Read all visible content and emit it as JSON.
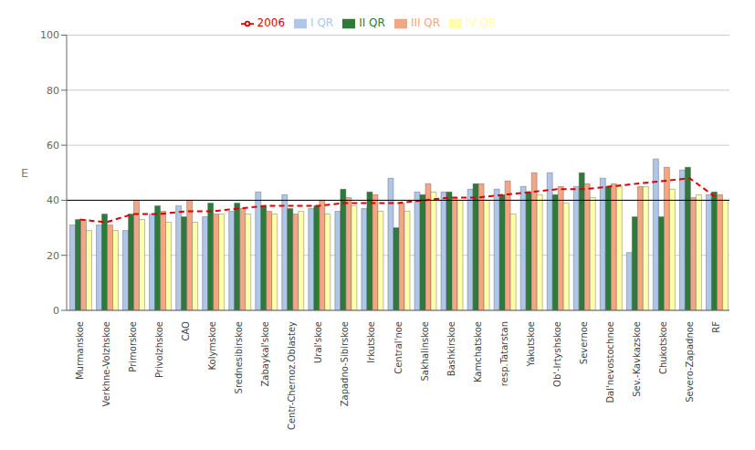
{
  "chart_data": {
    "type": "bar",
    "ylabel": "E",
    "categories": [
      "Murmanskoe",
      "Verkhne-Volzhskoe",
      "Primorskoe",
      "Privolzhskoe",
      "CAO",
      "Kolymskoe",
      "Srednesibirskoe",
      "Zabaykal'skoe",
      "Centr-Chernoz.Oblastey",
      "Ural'skoe",
      "Zapadno-Sibirskoe",
      "Irkutskoe",
      "Central'noe",
      "Sakhalinskoe",
      "Bashkirskoe",
      "Kamchatskoe",
      "resp.Tatarstan",
      "Yakutskoe",
      "Ob'-Irtyshskoe",
      "Severnoe",
      "Dal'nevostochnoe",
      "Sev.-Kavkazskoe",
      "Chukotskoe",
      "Severo-Zapadnoe",
      "RF"
    ],
    "series": [
      {
        "name": "I QR",
        "color": "#aec6e8",
        "values": [
          31,
          31,
          29,
          35,
          38,
          34,
          36,
          43,
          42,
          37,
          36,
          37,
          48,
          43,
          43,
          44,
          44,
          45,
          50,
          45,
          48,
          21,
          55,
          51,
          42
        ]
      },
      {
        "name": "II QR",
        "color": "#2d7a3a",
        "values": [
          33,
          35,
          35,
          38,
          34,
          39,
          39,
          38,
          37,
          38,
          44,
          43,
          30,
          42,
          43,
          46,
          42,
          43,
          42,
          50,
          45,
          34,
          34,
          52,
          43
        ]
      },
      {
        "name": "III QR",
        "color": "#f4a582",
        "values": [
          33,
          31,
          40,
          36,
          40,
          35,
          37,
          36,
          35,
          40,
          41,
          42,
          39,
          46,
          41,
          46,
          47,
          50,
          45,
          46,
          46,
          45,
          52,
          41,
          42
        ]
      },
      {
        "name": "IV QR",
        "color": "#ffffaa",
        "values": [
          29,
          29,
          33,
          32,
          32,
          35,
          35,
          35,
          36,
          35,
          38,
          36,
          36,
          43,
          40,
          40,
          35,
          42,
          39,
          41,
          45,
          45,
          44,
          42,
          40
        ]
      },
      {
        "name": "2006",
        "type": "line",
        "color": "#dd0000",
        "line_style": "dashed",
        "values": [
          33,
          32,
          35,
          35,
          36,
          36,
          37,
          38,
          38,
          38,
          39,
          39,
          39,
          40,
          41,
          41,
          42,
          43,
          44,
          44,
          45,
          46,
          47,
          48,
          41
        ]
      }
    ],
    "ylim": [
      0,
      100
    ],
    "yticks": [
      0,
      20,
      40,
      60,
      80,
      100
    ],
    "hline": 40,
    "grid": true,
    "legend": "top"
  }
}
